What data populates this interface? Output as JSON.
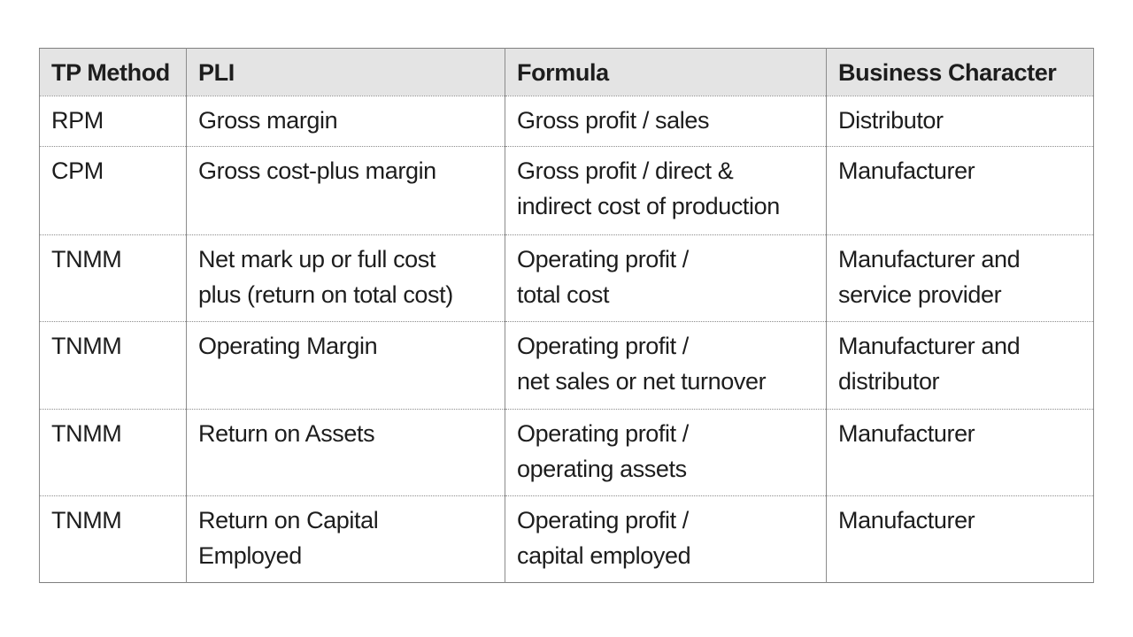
{
  "colors": {
    "page_background": "#ffffff",
    "header_background": "#e4e4e4",
    "border": "#8c8c8c",
    "text": "#1d1d1d"
  },
  "table": {
    "headers": {
      "tp_method": "TP Method",
      "pli": "PLI",
      "formula": "Formula",
      "business_character": "Business Character"
    },
    "rows": [
      {
        "tp_method": "RPM",
        "pli": "Gross margin",
        "formula": "Gross profit / sales",
        "business_character": "Distributor"
      },
      {
        "tp_method": "CPM",
        "pli": "Gross cost-plus margin",
        "formula": "Gross profit / direct &\nindirect cost of production",
        "business_character": "Manufacturer"
      },
      {
        "tp_method": "TNMM",
        "pli": "Net mark up or full cost\nplus (return on total cost)",
        "formula": "Operating profit /\ntotal cost",
        "business_character": "Manufacturer and\nservice provider"
      },
      {
        "tp_method": "TNMM",
        "pli": "Operating Margin",
        "formula": "Operating profit /\nnet sales or net turnover",
        "business_character": "Manufacturer and\ndistributor"
      },
      {
        "tp_method": "TNMM",
        "pli": "Return on Assets",
        "formula": "Operating profit /\noperating assets",
        "business_character": "Manufacturer"
      },
      {
        "tp_method": "TNMM",
        "pli": "Return on Capital\nEmployed",
        "formula": "Operating profit /\ncapital employed",
        "business_character": "Manufacturer"
      }
    ]
  }
}
